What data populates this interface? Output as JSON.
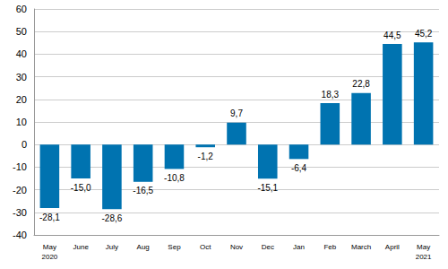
{
  "chart_data": {
    "type": "bar",
    "categories": [
      "May\n2020",
      "June",
      "July",
      "Aug",
      "Sep",
      "Oct",
      "Nov",
      "Dec",
      "Jan",
      "Feb",
      "March",
      "April",
      "May\n2021"
    ],
    "values": [
      -28.1,
      -15.0,
      -28.6,
      -16.5,
      -10.8,
      -1.2,
      9.7,
      -15.1,
      -6.4,
      18.3,
      22.8,
      44.5,
      45.2
    ],
    "value_labels": [
      "-28,1",
      "-15,0",
      "-28,6",
      "-16,5",
      "-10,8",
      "-1,2",
      "9,7",
      "-15,1",
      "-6,4",
      "18,3",
      "22,8",
      "44,5",
      "45,2"
    ],
    "color": "#0073b0",
    "ylim": [
      -40,
      60
    ],
    "yticks": [
      -40,
      -30,
      -20,
      -10,
      0,
      10,
      20,
      30,
      40,
      50,
      60
    ],
    "grid": true,
    "data_labels": true
  }
}
